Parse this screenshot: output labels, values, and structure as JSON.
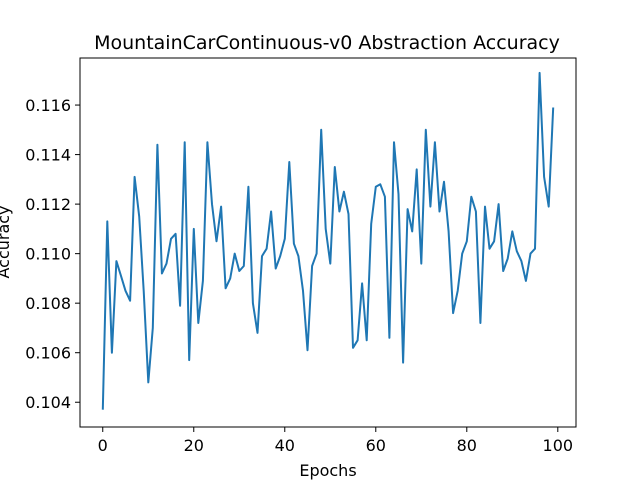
{
  "chart_data": {
    "type": "line",
    "title": "MountainCarContinuous-v0 Abstraction Accuracy",
    "xlabel": "Epochs",
    "ylabel": "Accuracy",
    "xlim": [
      -5,
      104
    ],
    "ylim": [
      0.103,
      0.1179
    ],
    "xticks": [
      0,
      20,
      40,
      60,
      80,
      100
    ],
    "xtick_labels": [
      "0",
      "20",
      "40",
      "60",
      "80",
      "100"
    ],
    "yticks": [
      0.104,
      0.106,
      0.108,
      0.11,
      0.112,
      0.114,
      0.116
    ],
    "ytick_labels": [
      "0.104",
      "0.106",
      "0.108",
      "0.110",
      "0.112",
      "0.114",
      "0.116"
    ],
    "grid": false,
    "line_color": "#1f77b4",
    "series": [
      {
        "x": [
          0,
          1,
          2,
          3,
          4,
          5,
          6,
          7,
          8,
          9,
          10,
          11,
          12,
          13,
          14,
          15,
          16,
          17,
          18,
          19,
          20,
          21,
          22,
          23,
          24,
          25,
          26,
          27,
          28,
          29,
          30,
          31,
          32,
          33,
          34,
          35,
          36,
          37,
          38,
          39,
          40,
          41,
          42,
          43,
          44,
          45,
          46,
          47,
          48,
          49,
          50,
          51,
          52,
          53,
          54,
          55,
          56,
          57,
          58,
          59,
          60,
          61,
          62,
          63,
          64,
          65,
          66,
          67,
          68,
          69,
          70,
          71,
          72,
          73,
          74,
          75,
          76,
          77,
          78,
          79,
          80,
          81,
          82,
          83,
          84,
          85,
          86,
          87,
          88,
          89,
          90,
          91,
          92,
          93,
          94,
          95,
          96,
          97,
          98,
          99
        ],
        "values": [
          0.1037,
          0.1113,
          0.106,
          0.1097,
          0.1091,
          0.1085,
          0.1081,
          0.1131,
          0.1115,
          0.1085,
          0.1048,
          0.107,
          0.1144,
          0.1092,
          0.1096,
          0.1106,
          0.1108,
          0.1079,
          0.1145,
          0.1057,
          0.111,
          0.1072,
          0.1089,
          0.1145,
          0.112,
          0.1105,
          0.1119,
          0.1086,
          0.109,
          0.11,
          0.1093,
          0.1095,
          0.1127,
          0.108,
          0.1068,
          0.1099,
          0.1102,
          0.1117,
          0.1094,
          0.1099,
          0.1106,
          0.1137,
          0.1104,
          0.1099,
          0.1085,
          0.1061,
          0.1095,
          0.11,
          0.115,
          0.111,
          0.1096,
          0.1135,
          0.1117,
          0.1125,
          0.1116,
          0.1062,
          0.1065,
          0.1088,
          0.1065,
          0.1112,
          0.1127,
          0.1128,
          0.1123,
          0.1066,
          0.1145,
          0.1124,
          0.1056,
          0.1118,
          0.1109,
          0.1134,
          0.1096,
          0.115,
          0.1119,
          0.1145,
          0.1117,
          0.1129,
          0.1109,
          0.1076,
          0.1085,
          0.11,
          0.1105,
          0.1123,
          0.1117,
          0.1072,
          0.1119,
          0.1102,
          0.1105,
          0.112,
          0.1093,
          0.1098,
          0.1109,
          0.1101,
          0.1097,
          0.1089,
          0.11,
          0.1102,
          0.1173,
          0.1131,
          0.1119,
          0.1159
        ]
      }
    ]
  }
}
